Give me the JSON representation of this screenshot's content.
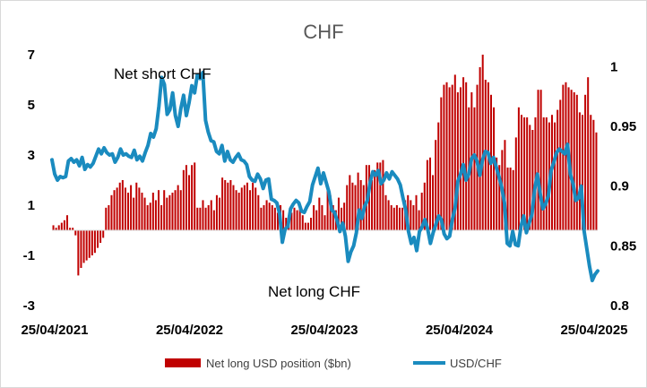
{
  "chart_data": {
    "type": "bar+line",
    "title": "CHF",
    "x_tick_labels": [
      "25/04/2021",
      "25/04/2022",
      "25/04/2023",
      "25/04/2024",
      "25/04/2025"
    ],
    "y_left": {
      "ticks": [
        7,
        5,
        3,
        1,
        -1,
        -3
      ],
      "range": [
        -3,
        7
      ]
    },
    "y_right": {
      "ticks": [
        1,
        0.95,
        0.9,
        0.85,
        0.8
      ],
      "range": [
        0.8,
        1.01
      ]
    },
    "annotations": {
      "top": "Net short CHF",
      "bottom": "Net long CHF"
    },
    "series": [
      {
        "name": "Net long USD position ($bn)",
        "type": "bar",
        "axis": "left",
        "color": "#c00000",
        "values": [
          0.2,
          0.1,
          0.2,
          0.3,
          0.4,
          0.6,
          0.1,
          0.1,
          -0.2,
          -1.8,
          -1.5,
          -1.3,
          -1.2,
          -1.1,
          -1.0,
          -0.9,
          -0.7,
          -0.5,
          -0.3,
          0.9,
          1.0,
          1.4,
          1.6,
          1.7,
          1.9,
          2.0,
          1.7,
          1.5,
          1.8,
          1.3,
          1.9,
          1.7,
          1.5,
          1.3,
          1.0,
          1.1,
          1.5,
          1.2,
          1.6,
          1.0,
          1.6,
          1.3,
          1.4,
          1.5,
          1.6,
          1.8,
          1.6,
          2.4,
          2.6,
          2.2,
          2.6,
          2.7,
          0.9,
          0.9,
          1.2,
          0.9,
          1.0,
          1.2,
          0.8,
          1.4,
          1.3,
          2.1,
          2.0,
          1.9,
          2.0,
          1.8,
          1.6,
          1.5,
          1.7,
          1.8,
          1.9,
          1.6,
          1.9,
          1.7,
          1.4,
          0.9,
          1.0,
          1.2,
          1.1,
          1.0,
          0.9,
          0.7,
          1.0,
          0.8,
          0.5,
          0.6,
          0.7,
          0.9,
          0.8,
          1.0,
          0.6,
          0.3,
          0.3,
          0.5,
          1.0,
          0.8,
          1.3,
          1.0,
          0.6,
          1.6,
          1.4,
          1.0,
          0.8,
          1.3,
          0.9,
          1.1,
          1.8,
          2.2,
          1.9,
          1.8,
          2.3,
          2.0,
          1.8,
          2.6,
          2.6,
          2.0,
          2.4,
          2.7,
          2.7,
          2.8,
          1.4,
          1.2,
          1.0,
          0.9,
          1.0,
          0.9,
          0.9,
          1.2,
          1.4,
          1.2,
          1.0,
          1.4,
          0.8,
          1.5,
          1.9,
          2.8,
          2.9,
          2.2,
          3.6,
          4.3,
          5.3,
          5.8,
          5.9,
          5.7,
          5.8,
          6.2,
          5.5,
          5.7,
          6.1,
          5.9,
          4.9,
          5.5,
          4.9,
          5.8,
          6.5,
          7.0,
          6.0,
          5.9,
          5.4,
          4.9,
          2.9,
          2.6,
          3.2,
          3.6,
          2.5,
          2.5,
          2.4,
          3.7,
          4.9,
          4.6,
          4.5,
          4.5,
          4.2,
          4.0,
          4.5,
          5.6,
          5.6,
          4.5,
          4.5,
          4.3,
          4.6,
          4.3,
          4.8,
          5.2,
          5.8,
          5.9,
          5.7,
          5.6,
          5.5,
          5.4,
          4.7,
          4.6,
          5.4,
          6.1,
          4.6,
          4.4,
          3.9
        ]
      },
      {
        "name": "USD/CHF",
        "type": "line",
        "axis": "right",
        "color": "#1a8bbf",
        "values": [
          0.922,
          0.91,
          0.905,
          0.908,
          0.907,
          0.908,
          0.921,
          0.923,
          0.92,
          0.922,
          0.917,
          0.924,
          0.914,
          0.918,
          0.916,
          0.919,
          0.925,
          0.931,
          0.927,
          0.932,
          0.928,
          0.926,
          0.927,
          0.92,
          0.924,
          0.931,
          0.926,
          0.927,
          0.925,
          0.924,
          0.93,
          0.922,
          0.925,
          0.921,
          0.928,
          0.934,
          0.944,
          0.941,
          0.948,
          0.967,
          0.991,
          0.985,
          0.96,
          0.964,
          0.978,
          0.959,
          0.95,
          0.965,
          0.976,
          0.959,
          0.97,
          0.984,
          0.978,
          0.993,
          0.99,
          0.995,
          0.955,
          0.945,
          0.938,
          0.937,
          0.929,
          0.927,
          0.934,
          0.921,
          0.929,
          0.922,
          0.92,
          0.924,
          0.927,
          0.922,
          0.921,
          0.918,
          0.908,
          0.905,
          0.904,
          0.91,
          0.906,
          0.898,
          0.905,
          0.906,
          0.889,
          0.888,
          0.886,
          0.877,
          0.853,
          0.864,
          0.866,
          0.881,
          0.885,
          0.888,
          0.886,
          0.879,
          0.878,
          0.883,
          0.887,
          0.901,
          0.908,
          0.915,
          0.902,
          0.911,
          0.903,
          0.895,
          0.88,
          0.878,
          0.871,
          0.862,
          0.869,
          0.858,
          0.837,
          0.845,
          0.85,
          0.861,
          0.88,
          0.873,
          0.883,
          0.888,
          0.903,
          0.912,
          0.909,
          0.913,
          0.902,
          0.905,
          0.911,
          0.906,
          0.912,
          0.909,
          0.906,
          0.901,
          0.89,
          0.88,
          0.862,
          0.852,
          0.857,
          0.846,
          0.862,
          0.866,
          0.872,
          0.864,
          0.852,
          0.861,
          0.868,
          0.875,
          0.872,
          0.86,
          0.856,
          0.858,
          0.872,
          0.882,
          0.904,
          0.91,
          0.918,
          0.905,
          0.91,
          0.923,
          0.926,
          0.921,
          0.909,
          0.922,
          0.929,
          0.928,
          0.919,
          0.924,
          0.916,
          0.908,
          0.899,
          0.886,
          0.852,
          0.85,
          0.862,
          0.851,
          0.85,
          0.866,
          0.875,
          0.861,
          0.869,
          0.876,
          0.897,
          0.91,
          0.894,
          0.881,
          0.885,
          0.892,
          0.913,
          0.92,
          0.928,
          0.931,
          0.929,
          0.927,
          0.935,
          0.91,
          0.902,
          0.888,
          0.89,
          0.9,
          0.863,
          0.848,
          0.833,
          0.821,
          0.826,
          0.829
        ]
      }
    ],
    "legend": {
      "position": "bottom"
    }
  }
}
